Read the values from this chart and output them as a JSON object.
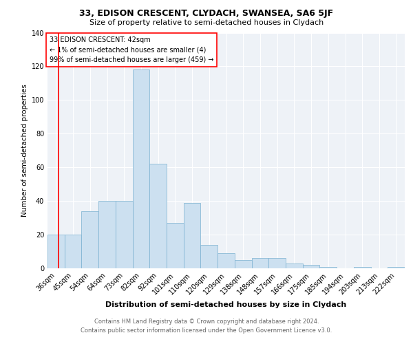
{
  "title": "33, EDISON CRESCENT, CLYDACH, SWANSEA, SA6 5JF",
  "subtitle": "Size of property relative to semi-detached houses in Clydach",
  "xlabel": "Distribution of semi-detached houses by size in Clydach",
  "ylabel": "Number of semi-detached properties",
  "categories": [
    "36sqm",
    "45sqm",
    "54sqm",
    "64sqm",
    "73sqm",
    "82sqm",
    "92sqm",
    "101sqm",
    "110sqm",
    "120sqm",
    "129sqm",
    "138sqm",
    "148sqm",
    "157sqm",
    "166sqm",
    "175sqm",
    "185sqm",
    "194sqm",
    "203sqm",
    "213sqm",
    "222sqm"
  ],
  "values": [
    20,
    20,
    34,
    40,
    40,
    118,
    62,
    27,
    39,
    14,
    9,
    5,
    6,
    6,
    3,
    2,
    1,
    0,
    1,
    0,
    1
  ],
  "bar_color": "#cce0f0",
  "bar_edge_color": "#7ab0d0",
  "annotation_text_line1": "33 EDISON CRESCENT: 42sqm",
  "annotation_text_line2": "← 1% of semi-detached houses are smaller (4)",
  "annotation_text_line3": "99% of semi-detached houses are larger (459) →",
  "ylim": [
    0,
    140
  ],
  "yticks": [
    0,
    20,
    40,
    60,
    80,
    100,
    120,
    140
  ],
  "footer_line1": "Contains HM Land Registry data © Crown copyright and database right 2024.",
  "footer_line2": "Contains public sector information licensed under the Open Government Licence v3.0.",
  "bg_color": "#eef2f7",
  "title_fontsize": 9,
  "subtitle_fontsize": 8,
  "xlabel_fontsize": 8,
  "ylabel_fontsize": 7.5,
  "tick_fontsize": 7,
  "annotation_fontsize": 7,
  "footer_fontsize": 6
}
